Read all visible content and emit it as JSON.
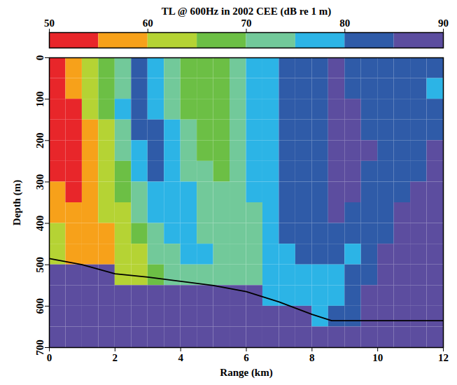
{
  "chart_data": {
    "type": "heatmap",
    "title": "TL @ 600Hz in 2002 CEE (dB re 1 m)",
    "x_label": "Range (km)",
    "y_label": "Depth (m)",
    "xlim": [
      0,
      12
    ],
    "xticks": [
      0,
      2,
      4,
      6,
      8,
      10,
      12
    ],
    "ylim": [
      0,
      700
    ],
    "yticks": [
      0,
      100,
      200,
      300,
      400,
      500,
      600,
      700
    ],
    "x": [
      0,
      0.5,
      1,
      1.5,
      2,
      2.5,
      3,
      3.5,
      4,
      4.5,
      5,
      5.5,
      6,
      6.5,
      7,
      7.5,
      8,
      8.5,
      9,
      9.5,
      10,
      10.5,
      11,
      11.5,
      12
    ],
    "y": [
      0,
      50,
      100,
      150,
      200,
      250,
      300,
      350,
      400,
      450,
      500,
      550,
      600,
      650,
      700
    ],
    "cells": [
      [
        52,
        57,
        62,
        67,
        72,
        80,
        75,
        70,
        66,
        67,
        68,
        72,
        75,
        78,
        80,
        82,
        84,
        85,
        83,
        80,
        82,
        84,
        83,
        80
      ],
      [
        52,
        55,
        62,
        67,
        74,
        80,
        78,
        72,
        68,
        66,
        68,
        72,
        76,
        78,
        80,
        82,
        84,
        85,
        84,
        82,
        82,
        84,
        82,
        78
      ],
      [
        52,
        54,
        60,
        65,
        75,
        82,
        78,
        74,
        68,
        67,
        68,
        72,
        76,
        78,
        80,
        82,
        84,
        86,
        85,
        84,
        84,
        83,
        80,
        80
      ],
      [
        52,
        53,
        58,
        64,
        73,
        80,
        80,
        75,
        70,
        67,
        68,
        72,
        76,
        78,
        80,
        82,
        84,
        86,
        85,
        84,
        84,
        82,
        80,
        84
      ],
      [
        53,
        53,
        56,
        63,
        70,
        78,
        80,
        76,
        72,
        68,
        68,
        72,
        75,
        78,
        80,
        82,
        84,
        86,
        86,
        85,
        83,
        80,
        82,
        86
      ],
      [
        54,
        53,
        55,
        62,
        68,
        75,
        80,
        78,
        73,
        70,
        68,
        72,
        75,
        78,
        80,
        82,
        84,
        86,
        86,
        84,
        82,
        80,
        84,
        87
      ],
      [
        56,
        54,
        55,
        60,
        66,
        72,
        78,
        78,
        75,
        72,
        70,
        72,
        75,
        78,
        80,
        82,
        84,
        86,
        85,
        82,
        80,
        83,
        86,
        88
      ],
      [
        58,
        55,
        55,
        60,
        64,
        70,
        75,
        78,
        76,
        73,
        70,
        72,
        74,
        78,
        80,
        82,
        84,
        85,
        83,
        80,
        82,
        85,
        87,
        88
      ],
      [
        60,
        56,
        55,
        58,
        62,
        67,
        72,
        75,
        76,
        74,
        72,
        72,
        74,
        77,
        80,
        82,
        83,
        83,
        80,
        80,
        84,
        86,
        88,
        88
      ],
      [
        62,
        57,
        56,
        57,
        60,
        64,
        70,
        72,
        75,
        75,
        73,
        72,
        74,
        77,
        79,
        81,
        80,
        80,
        78,
        82,
        85,
        86,
        88,
        88
      ],
      [
        90,
        90,
        90,
        90,
        60,
        63,
        67,
        70,
        72,
        74,
        74,
        73,
        74,
        76,
        78,
        79,
        78,
        78,
        80,
        84,
        86,
        87,
        88,
        88
      ],
      [
        90,
        90,
        90,
        90,
        90,
        90,
        90,
        90,
        90,
        90,
        90,
        90,
        90,
        76,
        76,
        77,
        77,
        78,
        82,
        85,
        86,
        87,
        88,
        88
      ],
      [
        90,
        90,
        90,
        90,
        90,
        90,
        90,
        90,
        90,
        90,
        90,
        90,
        90,
        90,
        90,
        90,
        78,
        80,
        84,
        86,
        87,
        88,
        88,
        88
      ],
      [
        90,
        90,
        90,
        90,
        90,
        90,
        90,
        90,
        90,
        90,
        90,
        90,
        90,
        90,
        90,
        90,
        90,
        90,
        90,
        90,
        90,
        90,
        90,
        90
      ]
    ],
    "bottom": {
      "x": [
        0,
        1,
        2,
        3,
        4,
        5,
        6,
        7,
        8,
        8.6,
        10,
        12
      ],
      "y": [
        485,
        500,
        522,
        530,
        540,
        550,
        565,
        590,
        620,
        635,
        635,
        635
      ],
      "color": "#000000"
    },
    "colorbar": {
      "range": [
        50,
        90
      ],
      "ticks": [
        50,
        60,
        70,
        80,
        90
      ],
      "levels": [
        50,
        55,
        60,
        65,
        70,
        75,
        80,
        85,
        90
      ],
      "colors": [
        "#e8262a",
        "#f7a11a",
        "#b5d334",
        "#6cbf45",
        "#72c99a",
        "#2cb4e6",
        "#2f5ba8",
        "#5c4d9f"
      ]
    }
  }
}
